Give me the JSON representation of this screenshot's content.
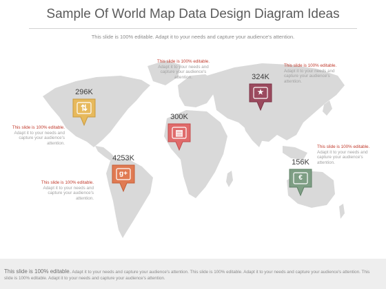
{
  "title": "Sample Of World Map Data Design Diagram Ideas",
  "subtitle": "This slide is 100% editable. Adapt it to your needs and capture your audience's attention.",
  "markers": [
    {
      "value": "296K",
      "color": "#e7b95c",
      "icon": "thumbs-up-icon",
      "glyph": "👍"
    },
    {
      "value": "4253K",
      "color": "#e07a52",
      "icon": "google-plus-icon",
      "glyph": "g+"
    },
    {
      "value": "300K",
      "color": "#e06b6b",
      "icon": "presentation-icon",
      "glyph": "▤"
    },
    {
      "value": "324K",
      "color": "#9b4a5e",
      "icon": "shield-star-icon",
      "glyph": "★"
    },
    {
      "value": "156K",
      "color": "#7e9e84",
      "icon": "money-icon",
      "glyph": "€"
    }
  ],
  "notes": {
    "heading": "This slide is 100% editable.",
    "lines": [
      "Adapt it to your needs and",
      "capture your audience's",
      "attention."
    ],
    "top_lines": [
      "Adapt it to your needs and",
      "capture your audience's",
      "attention."
    ]
  },
  "footer": {
    "lead": "This slide is 100% editable.",
    "text": " Adapt it to your needs and capture your audience's attention. This slide is 100% editable. Adapt it to your needs and capture your audience's attention. This slide is 100% editable. Adapt it to your needs and capture your audience's attention."
  }
}
